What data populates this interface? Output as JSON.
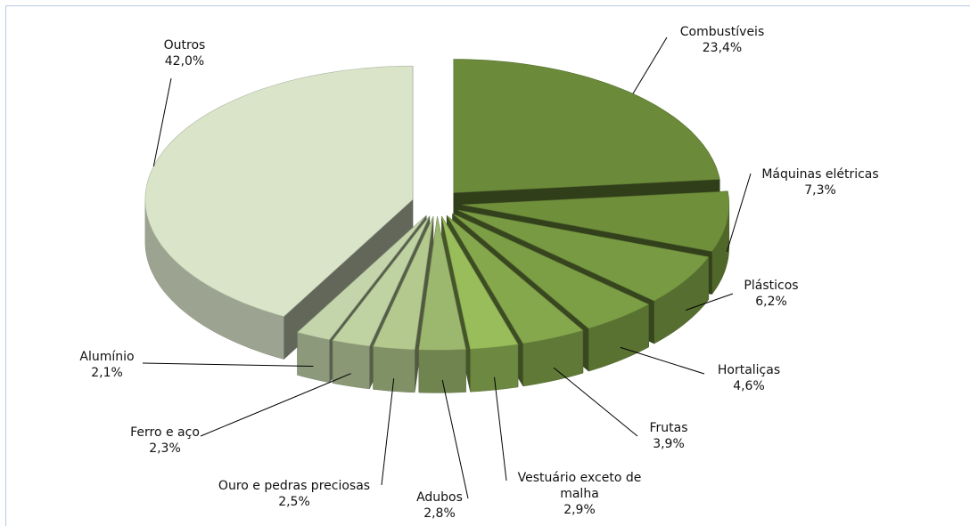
{
  "chart_data": {
    "type": "pie",
    "categories": [
      "Combustíveis",
      "Máquinas elétricas",
      "Plásticos",
      "Hortaliças",
      "Frutas",
      "Vestuário exceto de malha",
      "Adubos",
      "Ouro e pedras preciosas",
      "Ferro e aço",
      "Alumínio",
      "Outros"
    ],
    "values": [
      23.4,
      7.3,
      6.2,
      4.6,
      3.9,
      2.9,
      2.8,
      2.5,
      2.3,
      2.1,
      42.0
    ],
    "value_labels": [
      "23,4%",
      "7,3%",
      "6,2%",
      "4,6%",
      "3,9%",
      "2,9%",
      "2,8%",
      "2,5%",
      "2,3%",
      "2,1%",
      "42,0%"
    ],
    "colors": [
      "#6b8a3a",
      "#6f8f3b",
      "#789a42",
      "#7c9e45",
      "#86a84d",
      "#98bd5a",
      "#9cb76e",
      "#b3c98e",
      "#bfd3a2",
      "#c4d5ab",
      "#d9e4c9"
    ]
  }
}
